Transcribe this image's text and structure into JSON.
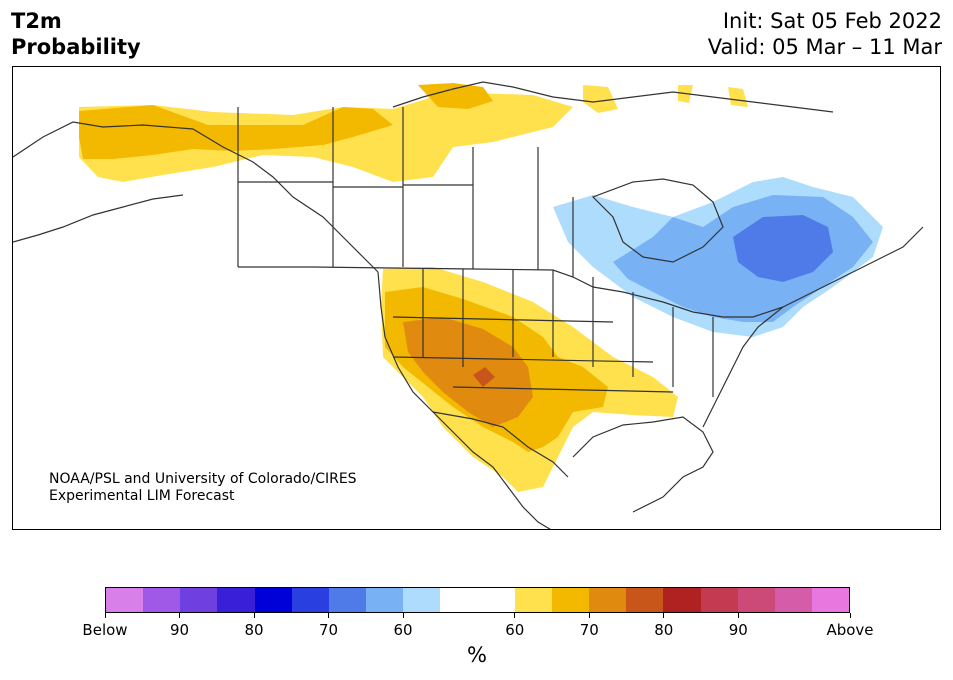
{
  "header": {
    "title_line1": "T2m",
    "title_line2": "Probability",
    "init": "Init: Sat 05 Feb 2022",
    "valid": "Valid: 05 Mar – 11 Mar"
  },
  "map": {
    "credit_line1": "NOAA/PSL and University of Colorado/CIRES",
    "credit_line2": "Experimental LIM Forecast"
  },
  "colorbar": {
    "colors": [
      "#d87fea",
      "#a058e6",
      "#6f3fdf",
      "#3a1fd8",
      "#0000d9",
      "#2a3fdf",
      "#4f7be9",
      "#78b2f5",
      "#addcfc",
      "#ffffff",
      "#ffffff",
      "#ffe04d",
      "#f3b900",
      "#e08b10",
      "#c85519",
      "#b02222",
      "#c43a50",
      "#cc4a78",
      "#d55ca8",
      "#e878e0"
    ],
    "labels": [
      "Below",
      "90",
      "80",
      "70",
      "60",
      "60",
      "70",
      "80",
      "90",
      "Above"
    ],
    "units": "%"
  },
  "colors": {
    "near_normal_warm": "#ffe04d",
    "warm_60": "#f3b900",
    "warm_70": "#e08b10",
    "warm_75": "#c85519",
    "cold_60": "#addcfc",
    "cold_70": "#78b2f5",
    "cold_75": "#4f7be9"
  }
}
